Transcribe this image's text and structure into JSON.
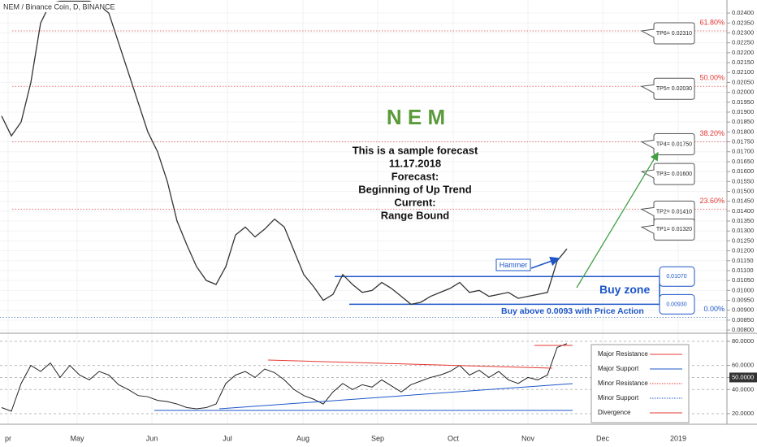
{
  "chart_data": {
    "type": "line",
    "title": "NEM / Binance Coin, D, BINANCE",
    "heading": "N E M",
    "forecast": [
      "This is a sample forecast",
      "11.17.2018",
      "Forecast:",
      "Beginning of Up Trend",
      "Current:",
      "Range Bound"
    ],
    "x_labels": [
      "pr",
      "May",
      "Jun",
      "Jul",
      "Aug",
      "Sep",
      "Oct",
      "Nov",
      "Dec",
      "2019"
    ],
    "price": {
      "color": "#333333",
      "ylim": [
        0.00784,
        0.02466
      ],
      "values": [
        0.0188,
        0.0178,
        0.0185,
        0.0205,
        0.0235,
        0.0245,
        0.0246,
        0.0246,
        0.0246,
        0.0246,
        0.0244,
        0.024,
        0.0225,
        0.021,
        0.0195,
        0.018,
        0.017,
        0.0155,
        0.0135,
        0.0123,
        0.0112,
        0.0105,
        0.0103,
        0.0112,
        0.0128,
        0.0132,
        0.0127,
        0.0131,
        0.0136,
        0.0132,
        0.012,
        0.0108,
        0.0102,
        0.0095,
        0.0098,
        0.0108,
        0.0103,
        0.0099,
        0.01,
        0.0104,
        0.0101,
        0.0097,
        0.0093,
        0.0094,
        0.0097,
        0.0099,
        0.0101,
        0.0104,
        0.0099,
        0.01,
        0.0097,
        0.0098,
        0.0099,
        0.0096,
        0.0097,
        0.0098,
        0.0099,
        0.0115,
        0.0121
      ],
      "yticks": [
        {
          "value": 0.008,
          "label": "0.00800"
        },
        {
          "value": 0.0085,
          "label": "0.00850"
        },
        {
          "value": 0.009,
          "label": "0.00900"
        },
        {
          "value": 0.0095,
          "label": "0.00950"
        },
        {
          "value": 0.01,
          "label": "0.01000"
        },
        {
          "value": 0.0105,
          "label": "0.01050"
        },
        {
          "value": 0.011,
          "label": "0.01100"
        },
        {
          "value": 0.0115,
          "label": "0.01150"
        },
        {
          "value": 0.012,
          "label": "0.01200"
        },
        {
          "value": 0.0125,
          "label": "0.01250"
        },
        {
          "value": 0.013,
          "label": "0.01300"
        },
        {
          "value": 0.0135,
          "label": "0.01350"
        },
        {
          "value": 0.014,
          "label": "0.01400"
        },
        {
          "value": 0.0145,
          "label": "0.01450"
        },
        {
          "value": 0.015,
          "label": "0.01500"
        },
        {
          "value": 0.0155,
          "label": "0.01550"
        },
        {
          "value": 0.016,
          "label": "0.01600"
        },
        {
          "value": 0.0165,
          "label": "0.01650"
        },
        {
          "value": 0.017,
          "label": "0.01700"
        },
        {
          "value": 0.0175,
          "label": "0.01750"
        },
        {
          "value": 0.018,
          "label": "0.01800"
        },
        {
          "value": 0.0185,
          "label": "0.01850"
        },
        {
          "value": 0.019,
          "label": "0.01900"
        },
        {
          "value": 0.0195,
          "label": "0.01950"
        },
        {
          "value": 0.02,
          "label": "0.02000"
        },
        {
          "value": 0.0205,
          "label": "0.02050"
        },
        {
          "value": 0.021,
          "label": "0.02100"
        },
        {
          "value": 0.0215,
          "label": "0.02150"
        },
        {
          "value": 0.022,
          "label": "0.02200"
        },
        {
          "value": 0.0225,
          "label": "0.02250"
        },
        {
          "value": 0.023,
          "label": "0.02300"
        },
        {
          "value": 0.0235,
          "label": "0.02350"
        },
        {
          "value": 0.024,
          "label": "0.02400"
        }
      ]
    },
    "fib_levels": [
      {
        "label": "61.80%",
        "value": 0.0231
      },
      {
        "label": "50.00%",
        "value": 0.0203
      },
      {
        "label": "38.20%",
        "value": 0.0175
      },
      {
        "label": "23.60%",
        "value": 0.0141
      },
      {
        "label": "0.00%",
        "value": 0.00864
      }
    ],
    "targets": [
      {
        "label": "TP6= 0.02310",
        "value": 0.0231
      },
      {
        "label": "TP5= 0.02030",
        "value": 0.0203
      },
      {
        "label": "TP4= 0.01750",
        "value": 0.0175
      },
      {
        "label": "TP3= 0.01600",
        "value": 0.016
      },
      {
        "label": "TP2= 0.01410",
        "value": 0.0141
      },
      {
        "label": "TP1= 0.01320",
        "value": 0.0132
      }
    ],
    "buy_zone": {
      "label": "Buy zone",
      "upper": {
        "value": 0.0107,
        "label": "0.01070"
      },
      "lower": {
        "value": 0.0093,
        "label": "0.00930"
      },
      "note": "Buy above 0.0093 with Price Action"
    },
    "hammer": "Hammer",
    "rsi": {
      "color": "#222222",
      "ylim": [
        11.2,
        86.7
      ],
      "values": [
        25,
        22,
        45,
        60,
        55,
        62,
        50,
        60,
        52,
        48,
        55,
        52,
        44,
        40,
        35,
        34,
        31,
        30,
        28,
        25,
        24,
        25,
        28,
        45,
        52,
        55,
        50,
        57,
        54,
        48,
        40,
        35,
        32,
        28,
        38,
        45,
        40,
        44,
        42,
        48,
        43,
        38,
        44,
        47,
        50,
        52,
        55,
        60,
        52,
        56,
        50,
        55,
        48,
        45,
        50,
        48,
        52,
        75,
        78
      ],
      "yticks": [
        {
          "value": 80,
          "label": "80.0000"
        },
        {
          "value": 60,
          "label": "60.0000"
        },
        {
          "value": 50,
          "label": "50.0000"
        },
        {
          "value": 40,
          "label": "40.0000"
        },
        {
          "value": 20,
          "label": "20.0000"
        }
      ]
    },
    "legend": [
      {
        "name": "Major Resistance",
        "color": "#e53935",
        "style": "solid"
      },
      {
        "name": "Major Support",
        "color": "#1e56c8",
        "style": "solid"
      },
      {
        "name": "Minor Resistance",
        "color": "#e53935",
        "style": "dotted"
      },
      {
        "name": "Minor Support",
        "color": "#1e56c8",
        "style": "dotted"
      },
      {
        "name": "Divergence",
        "color": "#e53935",
        "style": "solid"
      }
    ]
  }
}
